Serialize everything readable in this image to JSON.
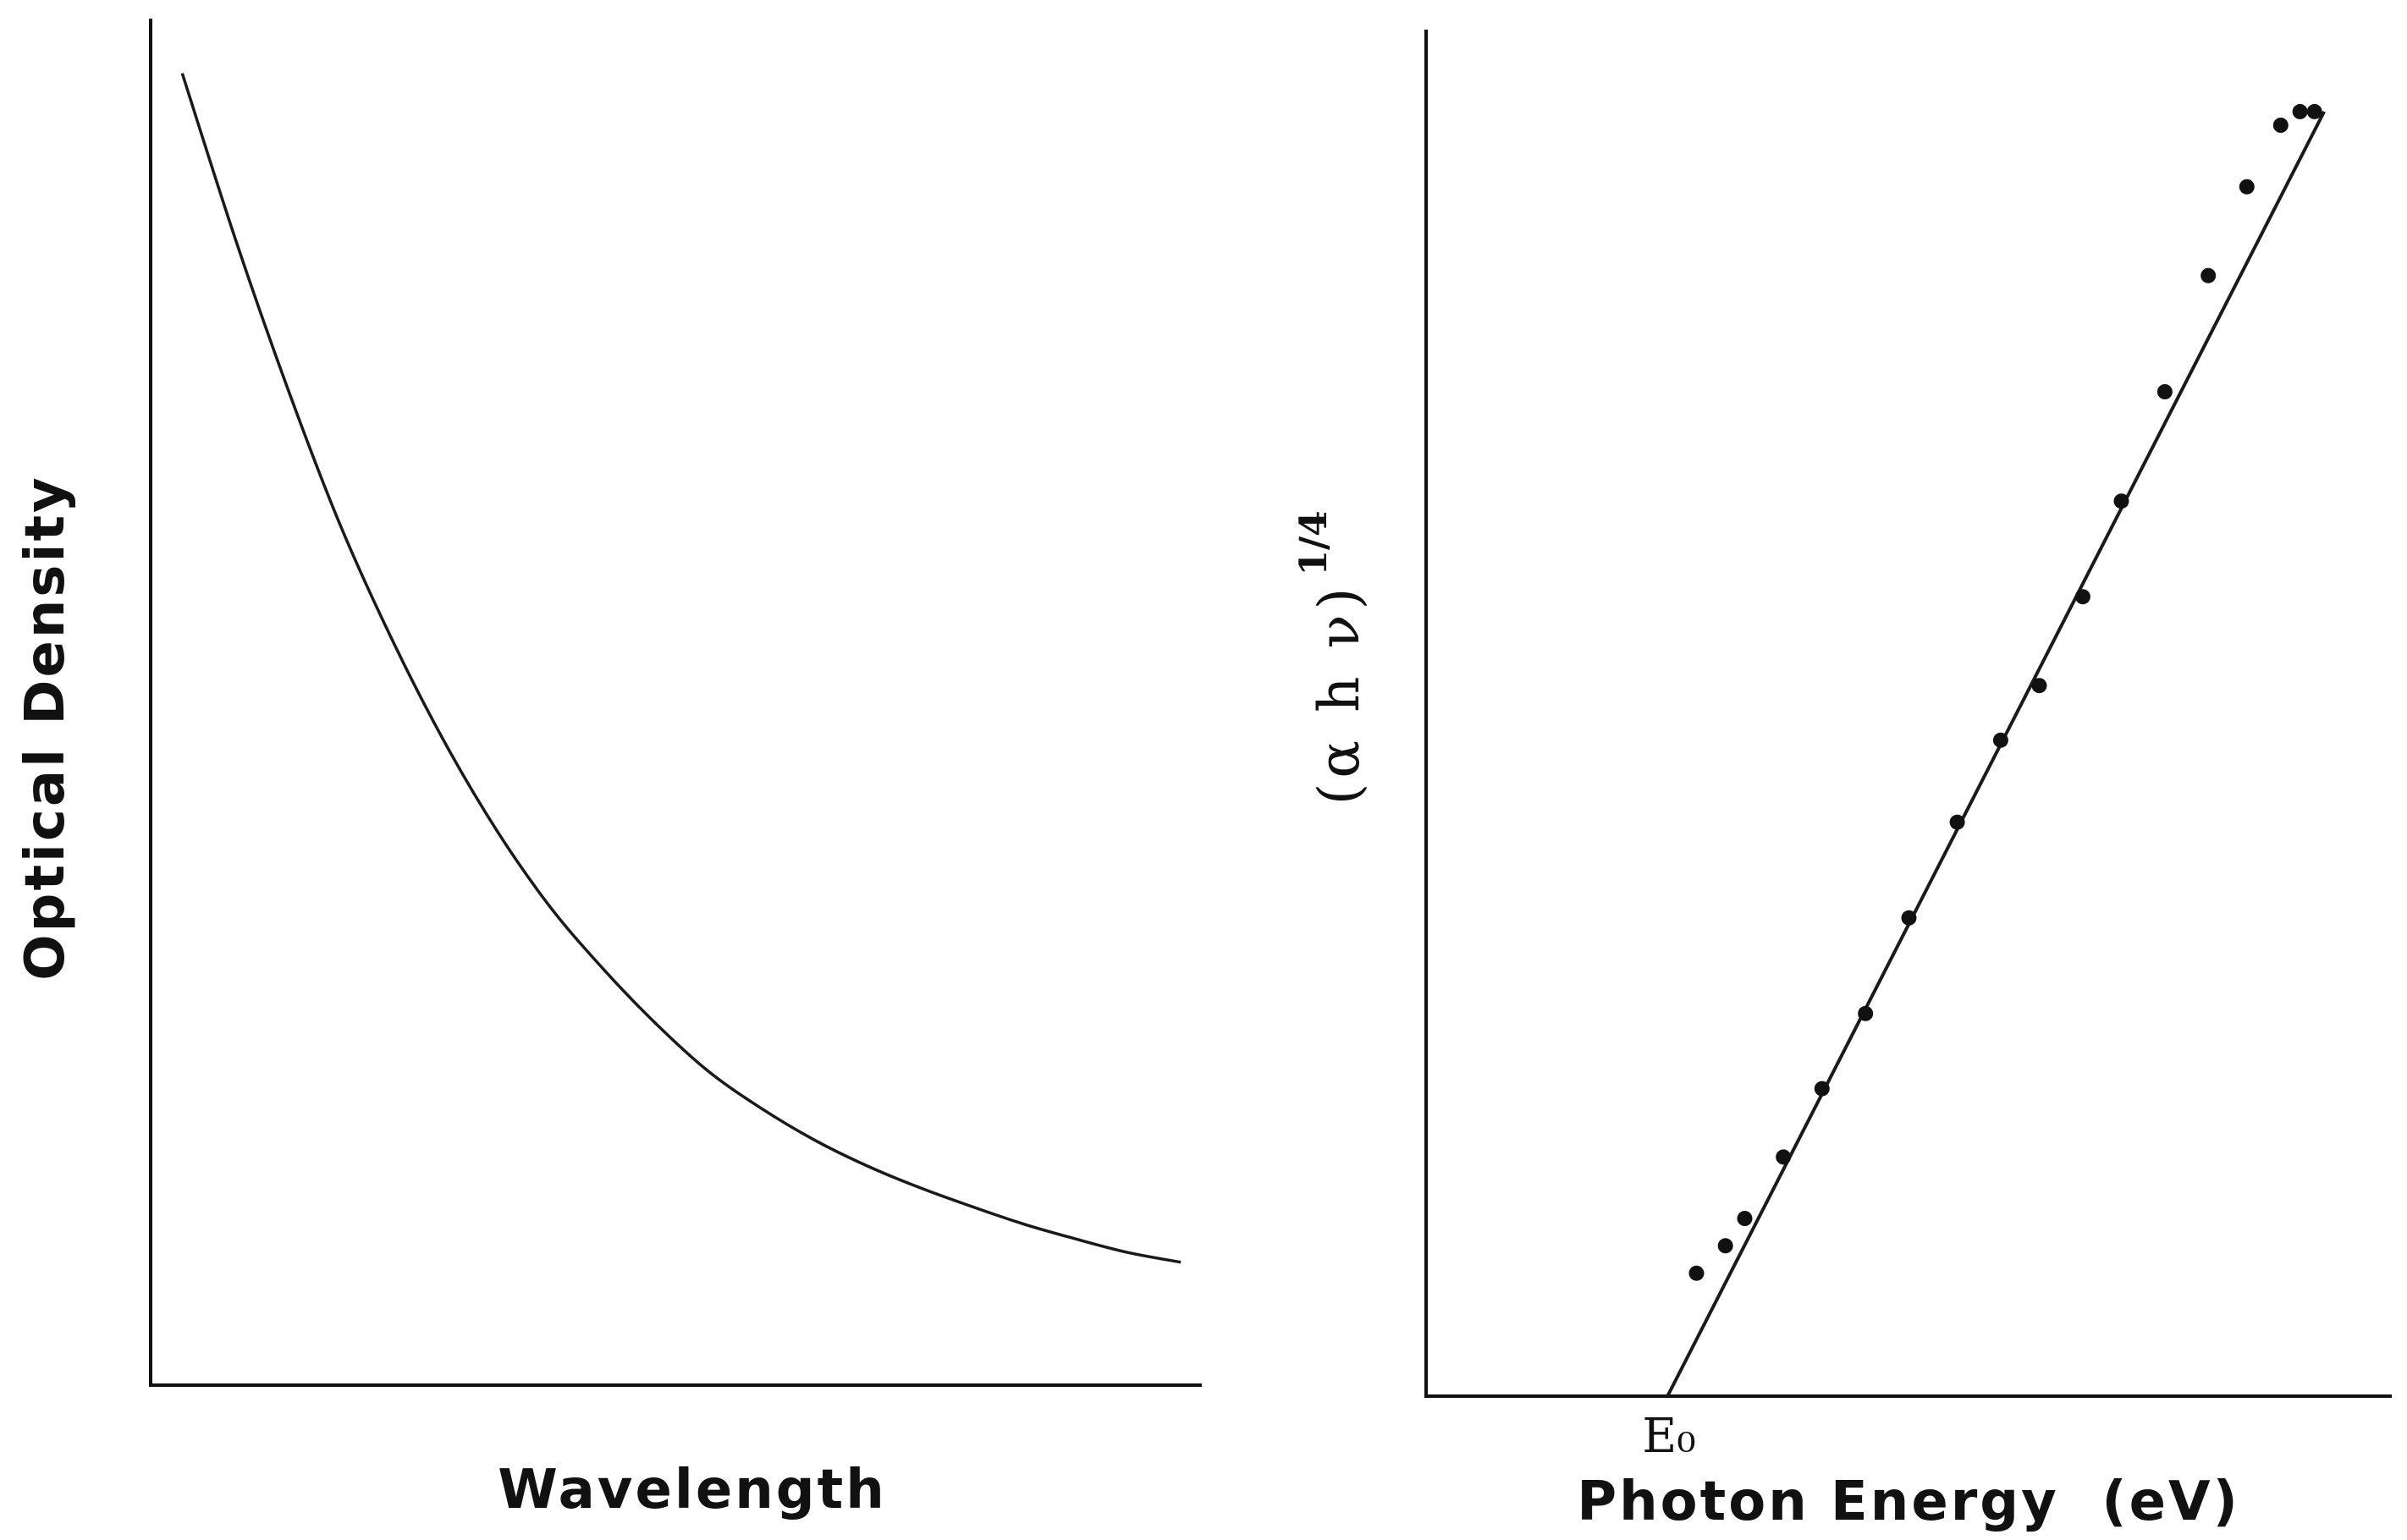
{
  "chart_data": [
    {
      "type": "line",
      "xlabel": "Wavelength",
      "ylabel": "Optical Density",
      "grid": false,
      "ticks": false,
      "series": [
        {
          "x": [
            0.03,
            0.08,
            0.13,
            0.18,
            0.23,
            0.28,
            0.33,
            0.38,
            0.43,
            0.48,
            0.53,
            0.58,
            0.63,
            0.68,
            0.73,
            0.78,
            0.83,
            0.88,
            0.93,
            0.98
          ],
          "y": [
            0.96,
            0.84,
            0.73,
            0.63,
            0.545,
            0.47,
            0.405,
            0.35,
            0.305,
            0.265,
            0.23,
            0.203,
            0.18,
            0.161,
            0.145,
            0.131,
            0.118,
            0.107,
            0.097,
            0.09
          ]
        }
      ]
    },
    {
      "type": "scatter",
      "xlabel": "Photon Energy  (eV)",
      "ylabel": "(α h ν)",
      "ylabel_superscript": "1/4",
      "annotation": "E₀",
      "grid": false,
      "ticks": false,
      "fit_line": {
        "x": [
          0.25,
          0.93
        ],
        "y": [
          0.0,
          0.94
        ]
      },
      "series": [
        {
          "x": [
            0.28,
            0.31,
            0.33,
            0.37,
            0.41,
            0.455,
            0.5,
            0.55,
            0.595,
            0.635,
            0.68,
            0.72,
            0.765,
            0.81,
            0.85,
            0.885,
            0.905,
            0.92
          ],
          "y": [
            0.09,
            0.11,
            0.13,
            0.175,
            0.225,
            0.28,
            0.35,
            0.42,
            0.48,
            0.52,
            0.585,
            0.655,
            0.735,
            0.82,
            0.885,
            0.93,
            0.94,
            0.94
          ]
        }
      ]
    }
  ]
}
